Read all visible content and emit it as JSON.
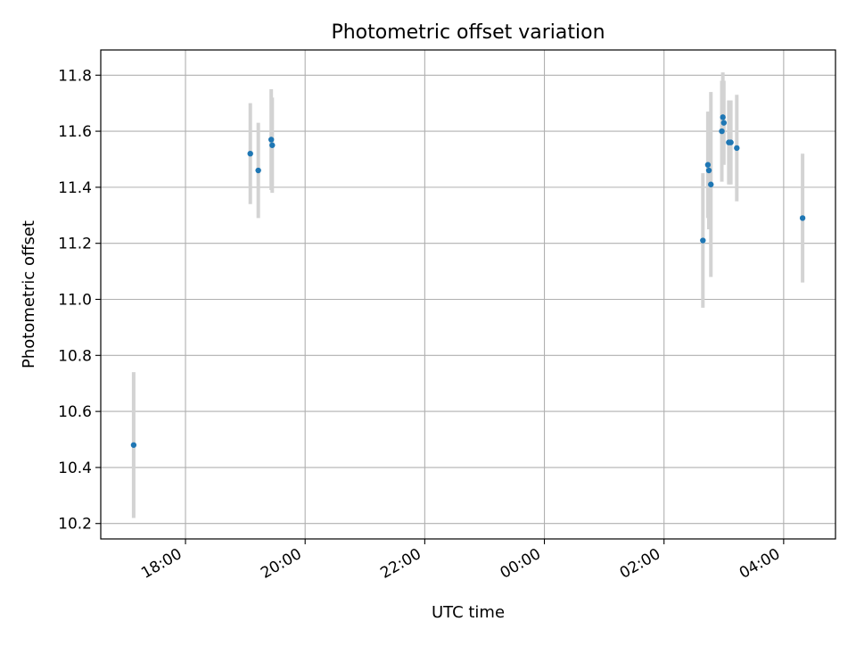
{
  "chart_data": {
    "type": "scatter",
    "title": "Photometric offset variation",
    "xlabel": "UTC time",
    "ylabel": "Photometric offset",
    "x_axis_kind": "time",
    "x_ticks": [
      "18:00",
      "20:00",
      "22:00",
      "00:00",
      "02:00",
      "04:00"
    ],
    "y_ticks": [
      "10.2",
      "10.4",
      "10.6",
      "10.8",
      "11.0",
      "11.2",
      "11.4",
      "11.6",
      "11.8"
    ],
    "xlim": [
      "16:35",
      "04:52"
    ],
    "ylim": [
      10.145,
      11.89
    ],
    "grid": true,
    "legend": "none",
    "colors": {
      "point": "#1f77b4",
      "error_bar": "#d3d3d3",
      "grid": "#b0b0b0"
    },
    "points": [
      {
        "t": "17:08",
        "y": 10.48,
        "err": 0.26
      },
      {
        "t": "19:05",
        "y": 11.52,
        "err": 0.18
      },
      {
        "t": "19:13",
        "y": 11.46,
        "err": 0.17
      },
      {
        "t": "19:26",
        "y": 11.57,
        "err": 0.18
      },
      {
        "t": "19:27",
        "y": 11.55,
        "err": 0.17
      },
      {
        "t": "02:39",
        "y": 11.21,
        "err": 0.24
      },
      {
        "t": "02:44",
        "y": 11.48,
        "err": 0.19
      },
      {
        "t": "02:45",
        "y": 11.46,
        "err": 0.21
      },
      {
        "t": "02:47",
        "y": 11.41,
        "err": 0.33
      },
      {
        "t": "02:58",
        "y": 11.6,
        "err": 0.18
      },
      {
        "t": "02:59",
        "y": 11.65,
        "err": 0.16
      },
      {
        "t": "03:00",
        "y": 11.63,
        "err": 0.15
      },
      {
        "t": "03:05",
        "y": 11.56,
        "err": 0.15
      },
      {
        "t": "03:07",
        "y": 11.56,
        "err": 0.15
      },
      {
        "t": "03:13",
        "y": 11.54,
        "err": 0.19
      },
      {
        "t": "04:19",
        "y": 11.29,
        "err": 0.23
      }
    ]
  }
}
